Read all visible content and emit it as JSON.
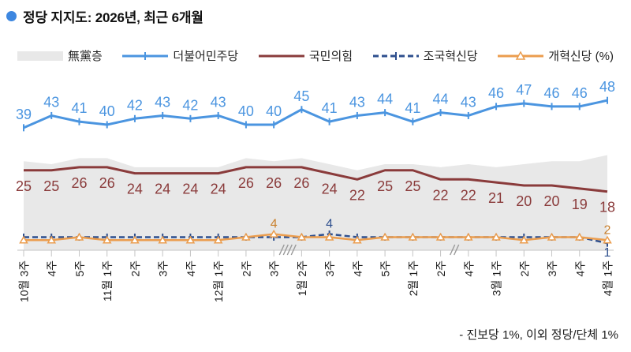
{
  "header": {
    "title": "정당 지지도: 2026년, 최근 6개월"
  },
  "legend": {
    "items": [
      {
        "label": "無黨층",
        "type": "area",
        "color": "#e8e8e8",
        "name": "independents"
      },
      {
        "label": "더불어민주당",
        "type": "line-cross",
        "color": "#4b95e0",
        "name": "democratic-party"
      },
      {
        "label": "국민의힘",
        "type": "line",
        "color": "#8a3b3b",
        "name": "people-power-party"
      },
      {
        "label": "조국혁신당",
        "type": "dashed-cross",
        "color": "#2e4f8e",
        "name": "rebuilding-korea-party"
      },
      {
        "label": "개혁신당 (%)",
        "type": "line-triangle",
        "color": "#eb9d4e",
        "name": "reform-party"
      }
    ]
  },
  "chart_data": {
    "type": "line",
    "title": "정당 지지도: 2026년, 최근 6개월",
    "ylim": [
      0,
      55
    ],
    "grid": false,
    "x_labels": [
      "10월 3주",
      "4주",
      "5주",
      "11월 1주",
      "2주",
      "3주",
      "4주",
      "12월 1주",
      "2주",
      "3주",
      "1월 2주",
      "3주",
      "4주",
      "5주",
      "2월 1주",
      "2주",
      "4주",
      "3월 1주",
      "2주",
      "3주",
      "4주",
      "4월 1주"
    ],
    "axis_breaks": [
      {
        "after_index": 9,
        "slashes": 4
      },
      {
        "after_index": 15,
        "slashes": 2
      }
    ],
    "series": [
      {
        "name": "무당층",
        "data_name": "area-series-independents",
        "type": "area",
        "color": "#e8e8e8",
        "values": [
          28,
          27,
          29,
          29,
          26,
          26,
          26,
          26,
          29,
          28,
          29,
          27,
          25,
          27,
          27,
          26,
          27,
          26,
          27,
          28,
          28,
          30
        ]
      },
      {
        "name": "국민의힘",
        "data_name": "line-people-power-party",
        "type": "line",
        "color": "#8a3b3b",
        "width": 3,
        "labels": "all",
        "label_pos": "below",
        "values": [
          25,
          25,
          26,
          26,
          24,
          24,
          24,
          24,
          26,
          26,
          26,
          24,
          22,
          25,
          25,
          22,
          22,
          21,
          20,
          20,
          19,
          18
        ]
      },
      {
        "name": "더불어민주당",
        "data_name": "line-democratic-party",
        "type": "line",
        "color": "#4b95e0",
        "width": 3,
        "marker": "tick",
        "labels": "all",
        "label_pos": "above",
        "values": [
          39,
          43,
          41,
          40,
          42,
          43,
          42,
          43,
          40,
          40,
          45,
          41,
          43,
          44,
          41,
          44,
          43,
          46,
          47,
          46,
          46,
          48
        ]
      },
      {
        "name": "조국혁신당",
        "data_name": "line-rebuilding-korea-party",
        "type": "line",
        "color": "#2e4f8e",
        "width": 2.5,
        "dash": "7 4",
        "marker": "tick",
        "values": [
          3,
          3,
          3,
          3,
          3,
          3,
          3,
          3,
          3,
          3,
          3,
          4,
          3,
          3,
          3,
          3,
          3,
          3,
          3,
          3,
          3,
          1
        ],
        "point_labels": {
          "11": "4",
          "21": "1"
        },
        "point_labels_below": [
          21
        ]
      },
      {
        "name": "개혁신당",
        "data_name": "line-reform-party",
        "type": "line",
        "color": "#eb9d4e",
        "width": 2.5,
        "label_color": "#c9812f",
        "marker": "triangle",
        "values": [
          2,
          2,
          3,
          2,
          2,
          2,
          2,
          2,
          3,
          4,
          3,
          3,
          2,
          3,
          3,
          3,
          3,
          3,
          2,
          3,
          3,
          2
        ],
        "point_labels": {
          "9": "4",
          "21": "2"
        },
        "point_labels_below": []
      }
    ]
  },
  "footnote": "- 진보당 1%, 이외 정당/단체 1%"
}
